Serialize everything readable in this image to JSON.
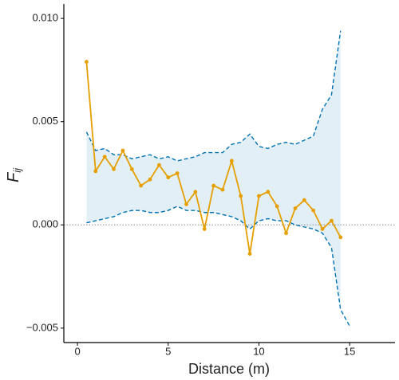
{
  "chart_data": {
    "type": "line",
    "xlabel": "Distance (m)",
    "ylabel": "F",
    "ylabel_sub": "ij",
    "x": [
      0.5,
      1.0,
      1.5,
      2.0,
      2.5,
      3.0,
      3.5,
      4.0,
      4.5,
      5.0,
      5.5,
      6.0,
      6.5,
      7.0,
      7.5,
      8.0,
      8.5,
      9.0,
      9.5,
      10.0,
      10.5,
      11.0,
      11.5,
      12.0,
      12.5,
      13.0,
      13.5,
      14.0,
      14.5,
      15.0
    ],
    "values": [
      0.0079,
      0.0026,
      0.0033,
      0.0027,
      0.0036,
      0.0027,
      0.0019,
      0.0022,
      0.0029,
      0.0023,
      0.0025,
      0.001,
      0.0016,
      -0.0002,
      0.0019,
      0.0017,
      0.0031,
      0.0014,
      -0.0014,
      0.0014,
      0.0016,
      0.0009,
      -0.0004,
      0.0008,
      0.0012,
      0.0007,
      -0.0002,
      0.0002,
      -0.0006,
      null
    ],
    "color": "#E69F00",
    "envelope": {
      "upper": [
        0.0045,
        0.0036,
        0.0037,
        0.0034,
        0.0034,
        0.0032,
        0.0033,
        0.0034,
        0.0032,
        0.0033,
        0.0031,
        0.0032,
        0.0033,
        0.0035,
        0.0035,
        0.0035,
        0.0039,
        0.004,
        0.0044,
        0.0038,
        0.0037,
        0.0039,
        0.004,
        0.0039,
        0.0041,
        0.0043,
        0.0056,
        0.0063,
        0.0094,
        null
      ],
      "lower": [
        0.0001,
        0.0002,
        0.0003,
        0.0004,
        0.0006,
        0.0007,
        0.0007,
        0.0006,
        0.0006,
        0.0007,
        0.0009,
        0.0007,
        0.0007,
        0.0006,
        0.0006,
        0.0005,
        0.0004,
        0.0002,
        -0.0002,
        0.0002,
        0.0003,
        0.0002,
        0.0002,
        0.0,
        -0.0001,
        -0.0002,
        -0.0004,
        -0.0011,
        -0.0041,
        -0.0049
      ],
      "line_color": "#0072B2",
      "fill_color": "#e3eff7"
    },
    "hline": 0,
    "xlim": [
      -0.75,
      17.5
    ],
    "xticks": [
      0,
      5,
      10,
      15
    ],
    "ylim": [
      -0.0057,
      0.0107
    ],
    "yticks": [
      {
        "value": -0.005,
        "label": "−0.005"
      },
      {
        "value": 0,
        "label": "0.000"
      },
      {
        "value": 0.005,
        "label": "0.005"
      },
      {
        "value": 0.01,
        "label": "0.010"
      }
    ]
  }
}
